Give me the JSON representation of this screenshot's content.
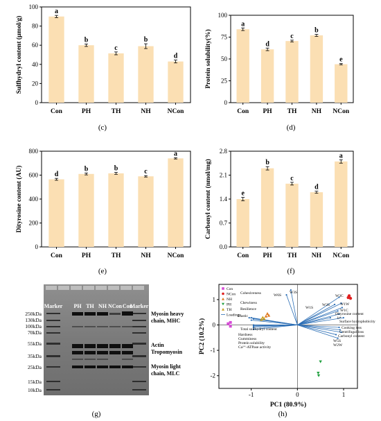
{
  "chart_data": [
    {
      "type": "bar",
      "panel": "(c)",
      "categories": [
        "Con",
        "PH",
        "TH",
        "NH",
        "NCon"
      ],
      "values": [
        90,
        60,
        51.5,
        59,
        43
      ],
      "errors": [
        1.2,
        1.3,
        1.5,
        2.5,
        1.5
      ],
      "letters": [
        "a",
        "b",
        "c",
        "b",
        "d"
      ],
      "ylabel": "Sulfhydryl content (μmol/g)",
      "ylim": [
        0,
        100
      ],
      "yticks": [
        0,
        20,
        40,
        60,
        80,
        100
      ]
    },
    {
      "type": "bar",
      "panel": "(d)",
      "categories": [
        "Con",
        "PH",
        "TH",
        "NH",
        "NCon"
      ],
      "values": [
        84,
        61,
        70.5,
        77,
        44
      ],
      "errors": [
        1.5,
        1.5,
        1.0,
        1.2,
        0.8
      ],
      "letters": [
        "a",
        "d",
        "c",
        "b",
        "e"
      ],
      "ylabel": "Protein solubility(%)",
      "ylim": [
        0,
        100
      ],
      "yticks": [
        0,
        25,
        50,
        75,
        100
      ]
    },
    {
      "type": "bar",
      "panel": "(e)",
      "categories": [
        "Con",
        "PH",
        "TH",
        "NH",
        "NCon"
      ],
      "values": [
        565,
        610,
        615,
        590,
        740
      ],
      "errors": [
        8,
        8,
        8,
        6,
        5
      ],
      "letters": [
        "d",
        "b",
        "b",
        "c",
        "a"
      ],
      "ylabel": "Dityrosine content (AU)",
      "ylim": [
        0,
        800
      ],
      "yticks": [
        0,
        200,
        400,
        600,
        800
      ]
    },
    {
      "type": "bar",
      "panel": "(f)",
      "categories": [
        "Con",
        "PH",
        "TH",
        "NH",
        "NCon"
      ],
      "values": [
        1.4,
        2.3,
        1.85,
        1.6,
        2.5
      ],
      "errors": [
        0.05,
        0.05,
        0.04,
        0.03,
        0.05
      ],
      "letters": [
        "e",
        "b",
        "c",
        "d",
        "a"
      ],
      "ylabel": "Carbonyl content (nmol/mg)",
      "ylim": [
        0,
        2.8
      ],
      "yticks": [
        "0.0",
        "0.7",
        "1.4",
        "2.1",
        "2.8"
      ]
    },
    {
      "type": "scatter",
      "panel": "(h)",
      "xlabel": "PC1 (80.9%)",
      "ylabel": "PC2 (10.2%)",
      "xticks": [
        "-1",
        "0",
        "1"
      ],
      "yticks": [
        "1",
        "0",
        "-1",
        "-2"
      ],
      "legend": [
        "Con",
        "NCon",
        "NH",
        "PH",
        "TH",
        "Loadings"
      ],
      "points": [
        {
          "group": "Con",
          "x": -1.45,
          "y": 0.1
        },
        {
          "group": "Con",
          "x": -1.5,
          "y": 0.05
        },
        {
          "group": "Con",
          "x": -1.45,
          "y": -0.05
        },
        {
          "group": "NCon",
          "x": 1.12,
          "y": 1.15
        },
        {
          "group": "NCon",
          "x": 1.15,
          "y": 1.05
        },
        {
          "group": "NCon",
          "x": 1.1,
          "y": 1.08
        },
        {
          "group": "NH",
          "x": -0.65,
          "y": 0.45
        },
        {
          "group": "NH",
          "x": -0.62,
          "y": 0.38
        },
        {
          "group": "NH",
          "x": -0.68,
          "y": 0.35
        },
        {
          "group": "PH",
          "x": 0.5,
          "y": -1.45
        },
        {
          "group": "PH",
          "x": 0.45,
          "y": -1.9
        },
        {
          "group": "PH",
          "x": 0.46,
          "y": -2.0
        },
        {
          "group": "TH",
          "x": -0.75,
          "y": 0.3
        },
        {
          "group": "TH",
          "x": -0.72,
          "y": 0.25
        },
        {
          "group": "TH",
          "x": -0.78,
          "y": 0.22
        }
      ],
      "loadings": [
        {
          "name": "W3S",
          "x": -0.15,
          "y": 1.45
        },
        {
          "name": "W6S",
          "x": -0.25,
          "y": 1.25
        },
        {
          "name": "W3C",
          "x": 0.95,
          "y": 1.15
        },
        {
          "name": "W1W",
          "x": 1.0,
          "y": 0.9
        },
        {
          "name": "W2S",
          "x": 0.85,
          "y": 0.85
        },
        {
          "name": "W5S",
          "x": 0.88,
          "y": -0.4
        },
        {
          "name": "W2W",
          "x": 0.92,
          "y": -0.55
        },
        {
          "name": "W1C",
          "x": 1.02,
          "y": 0.72
        },
        {
          "name": "W1S",
          "x": 0.75,
          "y": 0.3
        },
        {
          "name": "Dityrosine content",
          "x": 0.92,
          "y": 0.58
        },
        {
          "name": "b*",
          "x": 0.95,
          "y": 0.45
        },
        {
          "name": "Surface hydrophobicity",
          "x": 1.05,
          "y": 0.3
        },
        {
          "name": "Cooking loss",
          "x": 0.95,
          "y": -0.1
        },
        {
          "name": "Centrifugal loss",
          "x": 0.97,
          "y": -0.2
        },
        {
          "name": "Carbonyl content",
          "x": 1.0,
          "y": -0.3
        },
        {
          "name": "Elastic",
          "x": -1.0,
          "y": 0.25
        },
        {
          "name": "Total sulfhydryl content",
          "x": -1.0,
          "y": -0.18
        },
        {
          "name": "Cohesiveness",
          "x": -1.05,
          "y": 0.3
        },
        {
          "name": "Chewiness",
          "x": -1.1,
          "y": 0.3
        },
        {
          "name": "Resilience",
          "x": -1.05,
          "y": 0.2
        },
        {
          "name": "Hardness",
          "x": -1.0,
          "y": -0.1
        },
        {
          "name": "Gumminess",
          "x": -1.0,
          "y": -0.05
        },
        {
          "name": "Protein solubility",
          "x": -1.0,
          "y": -0.02
        },
        {
          "name": "Ca2+-ATPase activity",
          "x": -1.0,
          "y": 0.0
        }
      ],
      "loading_texts": {
        "cohesiveness": "Cohesiveness",
        "chewiness": "Chewiness",
        "resilience": "Resilience",
        "elastic": "Elastic",
        "w6s": "W6S",
        "w3s": "W3S",
        "w3c": "W3C",
        "w1w": "W1W",
        "w1c": "W1C",
        "w2s": "W2S",
        "w1s": "W1S",
        "dity": "Dityrosine content",
        "bstar": "b*",
        "surf": "Surface hydrophobicity",
        "cook": "Cooking loss",
        "cent": "Centrifugal loss",
        "carb": "Carbonyl content",
        "w5s": "W5S",
        "w2w": "W2W",
        "totalsh": "Total sulfhydryl content",
        "hard": "Hardness",
        "gum": "Gumminess",
        "prot": "Protein solubility",
        "atp": "Ca²⁺-ATPase activity"
      }
    }
  ],
  "gel": {
    "panel": "(g)",
    "lanes": [
      "Marker",
      "PH",
      "TH",
      "NH",
      "NCon",
      "Con",
      "Marker"
    ],
    "markers": [
      "250kDa",
      "130kDa",
      "100kDa",
      "70kDa",
      "55kDa",
      "35kDa",
      "25kDa",
      "15kDa",
      "10kDa"
    ],
    "bands": {
      "mhc_1": "Myosin heavy",
      "mhc_2": "chain, MHC",
      "actin": "Actin",
      "tropo": "Tropomyosin",
      "mlc_1": "Myosin light",
      "mlc_2": "chain, MLC"
    }
  }
}
